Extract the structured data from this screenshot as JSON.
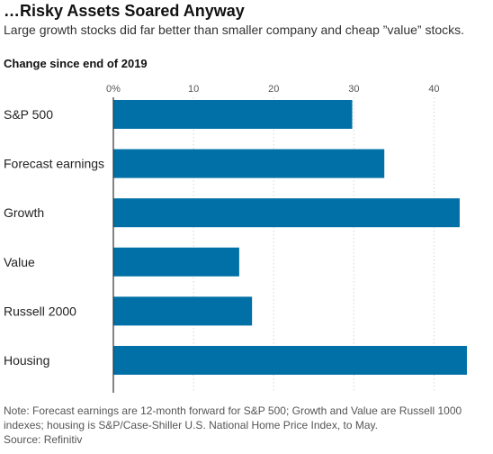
{
  "title": "…Risky Assets Soared Anyway",
  "subtitle": "Large growth stocks did far better than smaller company and cheap ”value” stocks.",
  "axis_caption": "Change since end of 2019",
  "note": "Note: Forecast earnings are 12-month forward for S&P 500; Growth and Value are Russell 1000 indexes; housing is S&P/Case-Shiller U.S. National Home Price Index, to May.",
  "source": "Source: Refinitiv",
  "colors": {
    "bar": "#0070a7",
    "grid": "#d7d7d7",
    "axis": "#333333",
    "text": "#222222"
  },
  "chart_data": {
    "type": "bar",
    "orientation": "horizontal",
    "categories": [
      "S&P 500",
      "Forecast earnings",
      "Growth",
      "Value",
      "Russell 2000",
      "Housing"
    ],
    "values": [
      29.8,
      33.8,
      43.2,
      15.7,
      17.3,
      44.1
    ],
    "xlim": [
      0,
      45
    ],
    "ticks": [
      0,
      10,
      20,
      30,
      40
    ],
    "tick_labels": [
      "0%",
      "10",
      "20",
      "30",
      "40"
    ],
    "grid": true
  }
}
